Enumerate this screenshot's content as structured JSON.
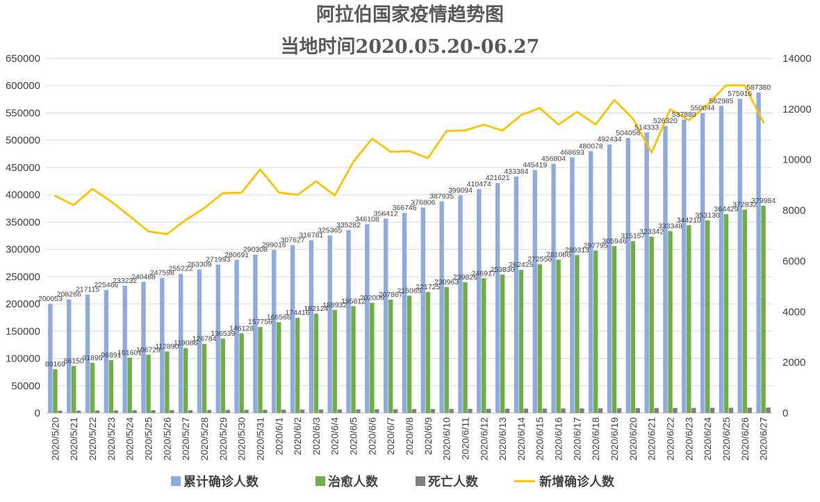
{
  "chart_data": {
    "type": "bar",
    "title": "阿拉伯国家疫情趋势图",
    "subtitle": "当地时间2020.05.20-06.27",
    "categories": [
      "2020/5/20",
      "2020/5/21",
      "2020/5/22",
      "2020/5/23",
      "2020/5/24",
      "2020/5/25",
      "2020/5/26",
      "2020/5/27",
      "2020/5/28",
      "2020/5/29",
      "2020/5/30",
      "2020/5/31",
      "2020/6/1",
      "2020/6/2",
      "2020/6/3",
      "2020/6/4",
      "2020/6/5",
      "2020/6/6",
      "2020/6/7",
      "2020/6/8",
      "2020/6/9",
      "2020/6/10",
      "2020/6/11",
      "2020/6/12",
      "2020/6/13",
      "2020/6/14",
      "2020/6/15",
      "2020/6/16",
      "2020/6/17",
      "2020/6/18",
      "2020/6/19",
      "2020/6/20",
      "2020/6/21",
      "2020/6/22",
      "2020/6/23",
      "2020/6/24",
      "2020/6/25",
      "2020/6/26",
      "2020/6/27"
    ],
    "left_axis": {
      "min": 0,
      "max": 650000,
      "step": 50000
    },
    "right_axis": {
      "min": 0,
      "max": 14000,
      "step": 2000
    },
    "grid": true,
    "legend_position": "bottom",
    "series": [
      {
        "name": "累计确诊人数",
        "kind": "bar",
        "axis": "left",
        "color": "#8faadc",
        "labels": true,
        "values": [
          200053,
          208266,
          217115,
          225466,
          233232,
          240488,
          247598,
          255222,
          263309,
          271993,
          280691,
          290308,
          299016,
          307627,
          316781,
          325365,
          335282,
          346108,
          356412,
          366746,
          376806,
          387935,
          399094,
          410474,
          421621,
          433384,
          445419,
          456804,
          468693,
          480078,
          492434,
          504056,
          514333,
          526320,
          537880,
          550044,
          562985,
          575916,
          587380
        ]
      },
      {
        "name": "治愈人数",
        "kind": "bar",
        "axis": "left",
        "color": "#70ad47",
        "labels": true,
        "values": [
          80169,
          86150,
          91895,
          96891,
          101601,
          106729,
          112890,
          119086,
          126784,
          136539,
          146128,
          157756,
          166566,
          174416,
          182124,
          188932,
          195812,
          202006,
          207867,
          215065,
          221725,
          230963,
          239826,
          246917,
          253830,
          262425,
          272556,
          281086,
          289313,
          297795,
          305946,
          315157,
          323342,
          333348,
          344210,
          353130,
          364429,
          372832,
          379984
        ]
      },
      {
        "name": "死亡人数",
        "kind": "bar",
        "axis": "left",
        "color": "#7f7f7f",
        "labels": false,
        "values": [
          4300,
          4450,
          4600,
          4750,
          4900,
          5050,
          5200,
          5350,
          5500,
          5650,
          5800,
          5950,
          6100,
          6250,
          6400,
          6550,
          6700,
          6850,
          7000,
          7150,
          7300,
          7450,
          7600,
          7750,
          7900,
          8050,
          8200,
          8350,
          8500,
          8650,
          8800,
          8950,
          9100,
          9250,
          9400,
          9550,
          9700,
          9850,
          10000
        ]
      },
      {
        "name": "新增确诊人数",
        "kind": "line",
        "axis": "right",
        "color": "#ffc000",
        "labels": false,
        "values": [
          8570,
          8210,
          8850,
          8350,
          7770,
          7170,
          7060,
          7620,
          8090,
          8680,
          8700,
          9620,
          8710,
          8610,
          9150,
          8590,
          9920,
          10830,
          10310,
          10340,
          10060,
          11130,
          11160,
          11380,
          11150,
          11760,
          12040,
          11390,
          11890,
          11390,
          12360,
          11620,
          10280,
          11990,
          11560,
          12170,
          12940,
          12930,
          11470
        ]
      }
    ]
  }
}
